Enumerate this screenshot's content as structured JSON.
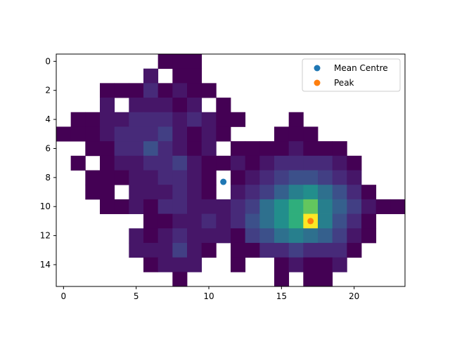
{
  "chart_data": {
    "type": "heatmap",
    "title": "",
    "xlabel": "",
    "ylabel": "",
    "xlim": [
      -0.5,
      23.5
    ],
    "ylim": [
      15.5,
      -0.5
    ],
    "y_inverted": true,
    "grid": false,
    "colormap": "viridis",
    "value_range": [
      1,
      14
    ],
    "x_ticks": [
      0,
      5,
      10,
      15,
      20
    ],
    "x_tick_labels": [
      "0",
      "5",
      "10",
      "15",
      "20"
    ],
    "y_ticks": [
      0,
      2,
      4,
      6,
      8,
      10,
      12,
      14
    ],
    "y_tick_labels": [
      "0",
      "2",
      "4",
      "6",
      "8",
      "10",
      "12",
      "14"
    ],
    "matrix": [
      [
        0,
        0,
        0,
        0,
        0,
        0,
        0,
        1,
        1,
        1,
        0,
        0,
        0,
        0,
        0,
        0,
        0,
        0,
        0,
        0,
        0,
        0,
        0,
        0
      ],
      [
        0,
        0,
        0,
        0,
        0,
        0,
        2,
        0,
        1,
        1,
        0,
        0,
        0,
        0,
        0,
        0,
        0,
        0,
        0,
        0,
        0,
        0,
        0,
        0
      ],
      [
        0,
        0,
        0,
        1,
        1,
        1,
        3,
        1,
        2,
        1,
        1,
        0,
        0,
        0,
        0,
        0,
        0,
        0,
        0,
        0,
        0,
        0,
        0,
        0
      ],
      [
        0,
        0,
        0,
        2,
        0,
        2,
        2,
        2,
        1,
        2,
        0,
        1,
        0,
        0,
        0,
        0,
        0,
        0,
        0,
        0,
        0,
        0,
        0,
        0
      ],
      [
        0,
        1,
        1,
        2,
        2,
        3,
        3,
        3,
        2,
        3,
        2,
        1,
        1,
        0,
        0,
        0,
        1,
        0,
        0,
        0,
        0,
        0,
        0,
        0
      ],
      [
        1,
        1,
        1,
        2,
        3,
        3,
        3,
        4,
        2,
        1,
        2,
        1,
        0,
        0,
        0,
        1,
        1,
        1,
        0,
        0,
        0,
        0,
        0,
        0
      ],
      [
        0,
        0,
        1,
        1,
        3,
        3,
        5,
        3,
        2,
        1,
        2,
        0,
        1,
        1,
        1,
        1,
        2,
        1,
        1,
        1,
        0,
        0,
        0,
        0
      ],
      [
        0,
        1,
        0,
        1,
        2,
        2,
        3,
        3,
        4,
        2,
        1,
        1,
        2,
        1,
        2,
        3,
        3,
        3,
        3,
        2,
        1,
        0,
        0,
        0
      ],
      [
        0,
        0,
        1,
        1,
        1,
        2,
        2,
        3,
        3,
        2,
        1,
        0,
        1,
        2,
        3,
        4,
        5,
        5,
        4,
        3,
        2,
        0,
        0,
        0
      ],
      [
        0,
        0,
        1,
        1,
        0,
        2,
        2,
        2,
        3,
        2,
        1,
        0,
        2,
        3,
        4,
        6,
        8,
        9,
        7,
        5,
        3,
        1,
        0,
        0
      ],
      [
        0,
        0,
        0,
        1,
        1,
        2,
        1,
        3,
        3,
        2,
        2,
        2,
        3,
        4,
        7,
        9,
        11,
        12,
        8,
        6,
        4,
        2,
        1,
        1
      ],
      [
        0,
        0,
        0,
        0,
        0,
        0,
        1,
        1,
        2,
        2,
        3,
        2,
        3,
        5,
        7,
        9,
        11,
        14,
        8,
        5,
        3,
        1,
        0,
        0
      ],
      [
        0,
        0,
        0,
        0,
        0,
        2,
        1,
        2,
        3,
        2,
        2,
        2,
        1,
        4,
        5,
        7,
        8,
        7,
        6,
        4,
        2,
        1,
        0,
        0
      ],
      [
        0,
        0,
        0,
        0,
        0,
        2,
        2,
        2,
        4,
        2,
        1,
        0,
        1,
        1,
        3,
        3,
        4,
        3,
        3,
        3,
        1,
        0,
        0,
        0
      ],
      [
        0,
        0,
        0,
        0,
        0,
        0,
        1,
        2,
        2,
        2,
        0,
        0,
        1,
        0,
        0,
        1,
        2,
        1,
        1,
        2,
        0,
        0,
        0,
        0
      ],
      [
        0,
        0,
        0,
        0,
        0,
        0,
        0,
        0,
        1,
        0,
        0,
        0,
        0,
        0,
        0,
        1,
        0,
        1,
        1,
        0,
        0,
        0,
        0,
        0
      ]
    ],
    "overlay_points": [
      {
        "name": "Mean Centre",
        "x": 11.0,
        "y": 8.3,
        "color": "#1f77b4"
      },
      {
        "name": "Peak",
        "x": 17.0,
        "y": 11.0,
        "color": "#ff7f0e"
      }
    ],
    "legend": {
      "placement": "upper right",
      "entries": [
        {
          "label": "Mean Centre",
          "color": "#1f77b4"
        },
        {
          "label": "Peak",
          "color": "#ff7f0e"
        }
      ]
    }
  }
}
